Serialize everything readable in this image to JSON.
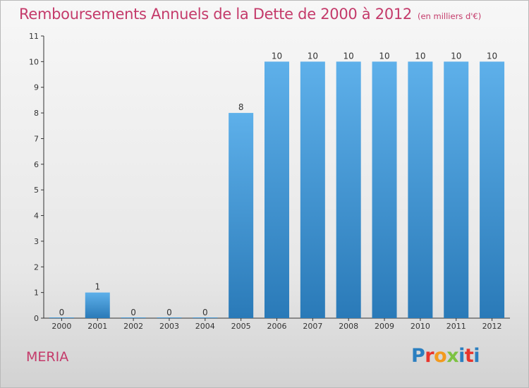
{
  "header": {
    "title": "Remboursements Annuels de la Dette de 2000 à 2012",
    "subtitle": "(en milliers d'€)"
  },
  "footer": {
    "commune": "MERIA",
    "logo_text": "Proxiti",
    "logo_colors": [
      "#2b7fc0",
      "#e9342b",
      "#f39a1e",
      "#7dc243",
      "#2b7fc0",
      "#e9342b",
      "#2b7fc0"
    ]
  },
  "colors": {
    "bar_top": "#5eb0ea",
    "bar_bottom": "#2a7ab8",
    "axis": "#333333",
    "text": "#333333",
    "accent": "#c43a6a"
  },
  "chart_data": {
    "type": "bar",
    "title": "Remboursements Annuels de la Dette de 2000 à 2012",
    "xlabel": "",
    "ylabel": "",
    "categories": [
      "2000",
      "2001",
      "2002",
      "2003",
      "2004",
      "2005",
      "2006",
      "2007",
      "2008",
      "2009",
      "2010",
      "2011",
      "2012"
    ],
    "values": [
      0,
      1,
      0,
      0,
      0,
      8,
      10,
      10,
      10,
      10,
      10,
      10,
      10
    ],
    "ylim": [
      0,
      11
    ],
    "yticks": [
      0,
      1,
      2,
      3,
      4,
      5,
      6,
      7,
      8,
      9,
      10,
      11
    ],
    "grid": false,
    "data_labels": true
  }
}
